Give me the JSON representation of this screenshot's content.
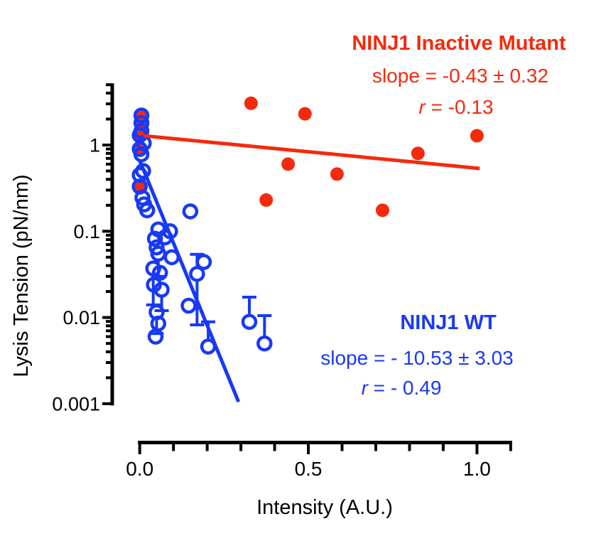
{
  "colors": {
    "red": "#f42a0c",
    "blue": "#1839f5",
    "axis": "#000000"
  },
  "annotations": {
    "red": {
      "title": "NINJ1 Inactive Mutant",
      "slope": "slope = -0.43 ± 0.32",
      "r_var": "r",
      "r_rest": " = -0.13"
    },
    "blue": {
      "title": "NINJ1 WT",
      "slope": "slope = - 10.53 ± 3.03",
      "r_var": "r",
      "r_rest": " = - 0.49"
    }
  },
  "chart_data": {
    "type": "scatter",
    "xlabel": "Intensity (A.U.)",
    "ylabel": "Lysis Tension (pN/nm)",
    "x_axis": {
      "min": 0,
      "max": 1.1,
      "scale": "linear",
      "major_ticks": [
        {
          "v": 0.0,
          "label": "0.0"
        },
        {
          "v": 0.5,
          "label": "0.5"
        },
        {
          "v": 1.0,
          "label": "1.0"
        }
      ],
      "minor_tick_step": 0.1
    },
    "y_axis": {
      "min": 0.001,
      "max": 5,
      "scale": "log",
      "major_ticks": [
        {
          "v": 1,
          "label": "1"
        },
        {
          "v": 0.1,
          "label": "0.1"
        },
        {
          "v": 0.01,
          "label": "0.01"
        },
        {
          "v": 0.001,
          "label": "0.001"
        }
      ],
      "minor_ticks": "log-2-to-9"
    },
    "series": [
      {
        "name": "NINJ1 Inactive Mutant",
        "color_key": "red",
        "marker": "filled-circle",
        "overlap_points": [
          [
            0.005,
            2.2
          ],
          [
            0.005,
            1.8
          ],
          [
            0.0,
            1.3
          ],
          [
            0.0,
            0.9
          ],
          [
            0.0,
            0.33
          ]
        ],
        "points": [
          [
            0.33,
            3.05
          ],
          [
            0.49,
            2.3
          ],
          [
            1.0,
            1.28
          ],
          [
            0.825,
            0.8
          ],
          [
            0.44,
            0.6
          ],
          [
            0.585,
            0.46
          ],
          [
            0.375,
            0.23
          ],
          [
            0.72,
            0.175
          ]
        ],
        "fit_line": {
          "x1": 0.012,
          "y1": 1.28,
          "x2": 1.008,
          "y2": 0.535
        },
        "slope": -0.43,
        "slope_err": 0.32,
        "r": -0.13
      },
      {
        "name": "NINJ1 WT",
        "color_key": "blue",
        "marker": "open-circle",
        "points": [
          [
            0.005,
            2.2
          ],
          [
            0.005,
            1.8
          ],
          [
            0.005,
            1.45
          ],
          [
            0.0,
            1.3
          ],
          [
            0.012,
            1.05
          ],
          [
            0.0,
            0.9
          ],
          [
            0.005,
            0.78
          ],
          [
            0.01,
            0.5
          ],
          [
            0.0,
            0.45
          ],
          [
            0.0,
            0.33
          ],
          [
            0.008,
            0.245
          ],
          [
            0.013,
            0.205
          ],
          [
            0.022,
            0.175
          ],
          [
            0.15,
            0.17
          ],
          [
            0.055,
            0.105
          ],
          [
            0.09,
            0.1
          ],
          [
            0.045,
            0.082
          ],
          [
            0.075,
            0.085
          ],
          [
            0.05,
            0.065
          ],
          [
            0.055,
            0.055
          ],
          [
            0.095,
            0.05
          ],
          [
            0.19,
            0.044
          ],
          [
            0.17,
            0.032
          ],
          [
            0.04,
            0.037
          ],
          [
            0.06,
            0.033
          ],
          [
            0.042,
            0.024
          ],
          [
            0.065,
            0.021
          ],
          [
            0.145,
            0.0137
          ],
          [
            0.05,
            0.0115
          ],
          [
            0.055,
            0.0085
          ],
          [
            0.047,
            0.006
          ],
          [
            0.203,
            0.0046
          ],
          [
            0.325,
            0.0089
          ],
          [
            0.37,
            0.005
          ]
        ],
        "error_bars": [
          {
            "x": 0.055,
            "y": 0.055,
            "end": 0.03
          },
          {
            "x": 0.04,
            "y": 0.037,
            "end": 0.014
          },
          {
            "x": 0.065,
            "y": 0.021,
            "end": 0.012
          },
          {
            "x": 0.17,
            "y": 0.032,
            "end": 0.054
          },
          {
            "x": 0.17,
            "y": 0.032,
            "end": 0.0082
          },
          {
            "x": 0.05,
            "y": 0.0115,
            "end": 0.0065
          },
          {
            "x": 0.203,
            "y": 0.0046,
            "end": 0.0089
          },
          {
            "x": 0.325,
            "y": 0.0089,
            "end": 0.0172
          },
          {
            "x": 0.37,
            "y": 0.005,
            "end": 0.0105
          }
        ],
        "fit_line": {
          "x1": 0.0,
          "y1": 0.66,
          "x2": 0.293,
          "y2": 0.00105
        },
        "slope": -10.53,
        "slope_err": 3.03,
        "r": -0.49
      }
    ]
  }
}
